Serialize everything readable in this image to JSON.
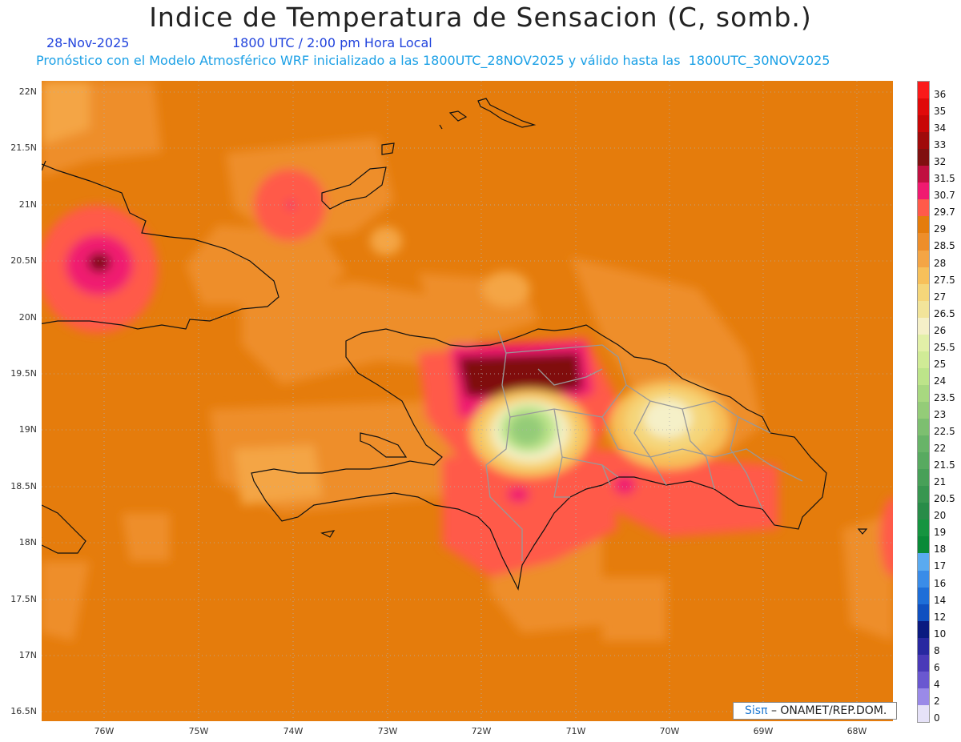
{
  "title": "Indice de Temperatura de Sensacion (C, somb.)",
  "date": "28-Nov-2025",
  "time": "1800 UTC / 2:00 pm Hora Local",
  "forecast": "Pronóstico con el Modelo Atmosférico WRF inicializado a las 1800UTC_28NOV2025 y válido hasta las  1800UTC_30NOV2025",
  "credit": {
    "logo_text": "Sisπ",
    "text": " – ONAMET/REP.DOM."
  },
  "lat_labels": [
    "22N",
    "21.5N",
    "21N",
    "20.5N",
    "20N",
    "19.5N",
    "19N",
    "18.5N",
    "18N",
    "17.5N",
    "17N",
    "16.5N"
  ],
  "lon_labels": [
    "76W",
    "75W",
    "74W",
    "73W",
    "72W",
    "71W",
    "70W",
    "69W",
    "68W"
  ],
  "legend": {
    "levels": [
      "36",
      "35",
      "34",
      "33",
      "32",
      "31.5",
      "30.7",
      "29.7",
      "29",
      "28.5",
      "28",
      "27.5",
      "27",
      "26.5",
      "26",
      "25.5",
      "25",
      "24",
      "23.5",
      "23",
      "22.5",
      "22",
      "21.5",
      "21",
      "20.5",
      "20",
      "19",
      "18",
      "17",
      "16",
      "14",
      "12",
      "10",
      "8",
      "6",
      "4",
      "2",
      "0"
    ],
    "colors": [
      "#fa1a1a",
      "#e00a0a",
      "#c80606",
      "#a00a0a",
      "#801010",
      "#c01040",
      "#f01a70",
      "#ff5a4a",
      "#e57c0c",
      "#ee8e2a",
      "#f4a545",
      "#f7c05a",
      "#f5d67a",
      "#f2e49a",
      "#f5f0c8",
      "#e2f0a8",
      "#d0eb96",
      "#bde48a",
      "#a8d880",
      "#94cc78",
      "#7dbf70",
      "#68b468",
      "#58aa60",
      "#48a058",
      "#389650",
      "#288c48",
      "#169440",
      "#0a8a38",
      "#5aaaf0",
      "#3a8ce8",
      "#1e6ed8",
      "#1050c0",
      "#0a1a80",
      "#2828a0",
      "#4a3ab8",
      "#6a58d0",
      "#9a8ae8",
      "#e6e2f8"
    ]
  }
}
